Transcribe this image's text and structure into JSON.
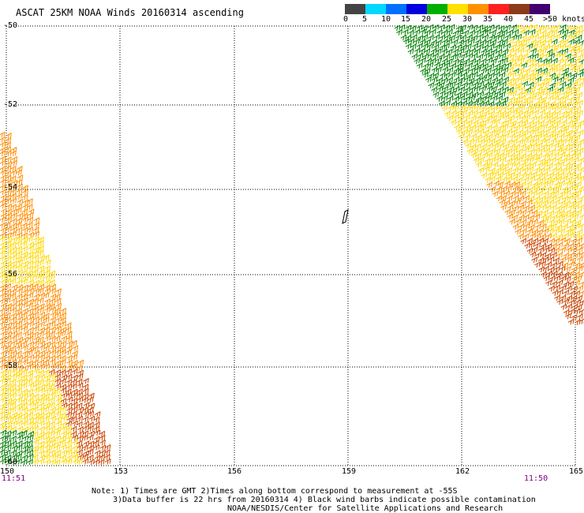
{
  "title": "ASCAT 25KM NOAA Winds 20160314 ascending",
  "legend": {
    "labels": [
      "0",
      "5",
      "10",
      "15",
      "20",
      "25",
      "30",
      "35",
      "40",
      "45",
      ">50 knots"
    ],
    "colors": [
      "#404040",
      "#a0a0a0",
      "#00e0ff",
      "#0080ff",
      "#0000ff",
      "#00b000",
      "#ffe000",
      "#ff9000",
      "#ff3000",
      "#e00030",
      "#8b4513",
      "#400070"
    ]
  },
  "axes": {
    "lat_labels": [
      "-50",
      "-52",
      "-54",
      "-56",
      "-58",
      "-60"
    ],
    "lon_labels": [
      "150",
      "153",
      "156",
      "159",
      "162",
      "165"
    ],
    "time_left": "11:51",
    "time_right": "11:50"
  },
  "notes": {
    "line1": "Note: 1) Times are GMT 2)Times along bottom correspond to measurement at -55S",
    "line2": "3)Data buffer is 22 hrs from 20160314 4) Black wind barbs indicate possible contamination",
    "line3": "NOAA/NESDIS/Center for Satellite Applications and Research"
  },
  "wind_colors": {
    "green": "#008000",
    "yellow": "#ffd700",
    "orange": "#ff8c00",
    "darkorange": "#cc4400",
    "black": "#000000"
  }
}
